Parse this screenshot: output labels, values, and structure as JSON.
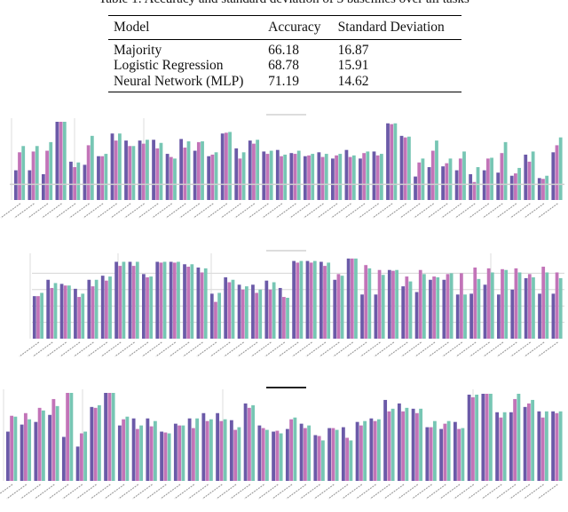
{
  "table": {
    "caption": "Table 1: Accuracy and standard deviation of 3 baselines over all tasks",
    "headers": [
      "Model",
      "Accuracy",
      "Standard Deviation"
    ],
    "rows": [
      [
        "Majority",
        "66.18",
        "16.87"
      ],
      [
        "Logistic Regression",
        "68.78",
        "15.91"
      ],
      [
        "Neural Network (MLP)",
        "71.19",
        "14.62"
      ]
    ]
  },
  "colors": {
    "series_1": "#6b5aa8",
    "series_2": "#c274b8",
    "series_3": "#77c6b4",
    "error_bar": "#e0607a"
  },
  "chart_data": [
    {
      "type": "bar",
      "ylim": [
        0,
        100
      ],
      "grid": false,
      "series": [
        {
          "values": [
            38,
            38,
            33,
            100,
            49,
            45,
            56,
            85,
            76,
            76,
            77,
            59,
            78,
            63,
            56,
            85,
            66,
            76,
            62,
            64,
            60,
            56,
            61,
            53,
            64,
            53,
            62,
            98,
            82,
            30,
            42,
            43,
            38,
            33,
            38,
            35,
            31,
            58,
            28,
            61
          ]
        },
        {
          "values": [
            61,
            62,
            63,
            100,
            42,
            70,
            56,
            76,
            69,
            72,
            66,
            55,
            67,
            74,
            58,
            86,
            53,
            72,
            59,
            56,
            59,
            57,
            55,
            57,
            55,
            60,
            57,
            97,
            80,
            48,
            63,
            47,
            53,
            23,
            53,
            60,
            34,
            49,
            27,
            70
          ]
        },
        {
          "values": [
            69,
            69,
            74,
            100,
            48,
            82,
            59,
            85,
            69,
            77,
            73,
            53,
            75,
            75,
            61,
            87,
            61,
            77,
            63,
            58,
            63,
            59,
            59,
            59,
            57,
            62,
            59,
            98,
            81,
            53,
            76,
            53,
            62,
            42,
            54,
            74,
            41,
            62,
            31,
            80
          ]
        }
      ]
    },
    {
      "type": "bar",
      "ylim": [
        0,
        100
      ],
      "grid": true,
      "series": [
        {
          "values": [
            52,
            72,
            67,
            61,
            72,
            77,
            94,
            94,
            79,
            94,
            94,
            91,
            87,
            55,
            75,
            66,
            66,
            71,
            62,
            95,
            95,
            94,
            72,
            98,
            54,
            54,
            84,
            64,
            57,
            72,
            72,
            54,
            55,
            66,
            54,
            60,
            74,
            55,
            55
          ]
        },
        {
          "values": [
            52,
            62,
            65,
            51,
            64,
            71,
            89,
            89,
            75,
            93,
            93,
            88,
            81,
            45,
            69,
            60,
            56,
            60,
            51,
            93,
            93,
            89,
            79,
            98,
            90,
            84,
            83,
            76,
            84,
            76,
            79,
            80,
            87,
            86,
            85,
            86,
            79,
            88,
            81
          ]
        },
        {
          "values": [
            56,
            68,
            65,
            55,
            72,
            76,
            94,
            94,
            76,
            94,
            94,
            91,
            86,
            56,
            72,
            64,
            60,
            69,
            50,
            95,
            95,
            93,
            77,
            98,
            86,
            78,
            84,
            70,
            79,
            75,
            80,
            54,
            73,
            81,
            84,
            81,
            75,
            81,
            74
          ]
        }
      ]
    },
    {
      "type": "bar",
      "ylim": [
        0,
        100
      ],
      "grid": false,
      "series": [
        {
          "values": [
            56,
            64,
            67,
            75,
            50,
            39,
            84,
            100,
            63,
            71,
            71,
            56,
            65,
            71,
            77,
            77,
            69,
            88,
            63,
            56,
            59,
            65,
            52,
            60,
            61,
            67,
            71,
            92,
            88,
            82,
            61,
            59,
            67,
            98,
            99,
            78,
            78,
            84,
            79,
            79
          ]
        },
        {
          "values": [
            74,
            77,
            83,
            93,
            100,
            54,
            83,
            100,
            70,
            59,
            62,
            55,
            63,
            60,
            68,
            68,
            58,
            83,
            60,
            57,
            70,
            60,
            51,
            60,
            49,
            63,
            68,
            79,
            79,
            77,
            61,
            65,
            59,
            95,
            99,
            72,
            93,
            88,
            72,
            77
          ]
        },
        {
          "values": [
            73,
            70,
            80,
            85,
            100,
            56,
            86,
            100,
            73,
            63,
            68,
            54,
            63,
            71,
            70,
            70,
            61,
            86,
            58,
            54,
            72,
            63,
            46,
            58,
            46,
            68,
            70,
            82,
            83,
            82,
            68,
            68,
            60,
            98,
            99,
            78,
            99,
            92,
            79,
            79
          ]
        }
      ]
    }
  ]
}
